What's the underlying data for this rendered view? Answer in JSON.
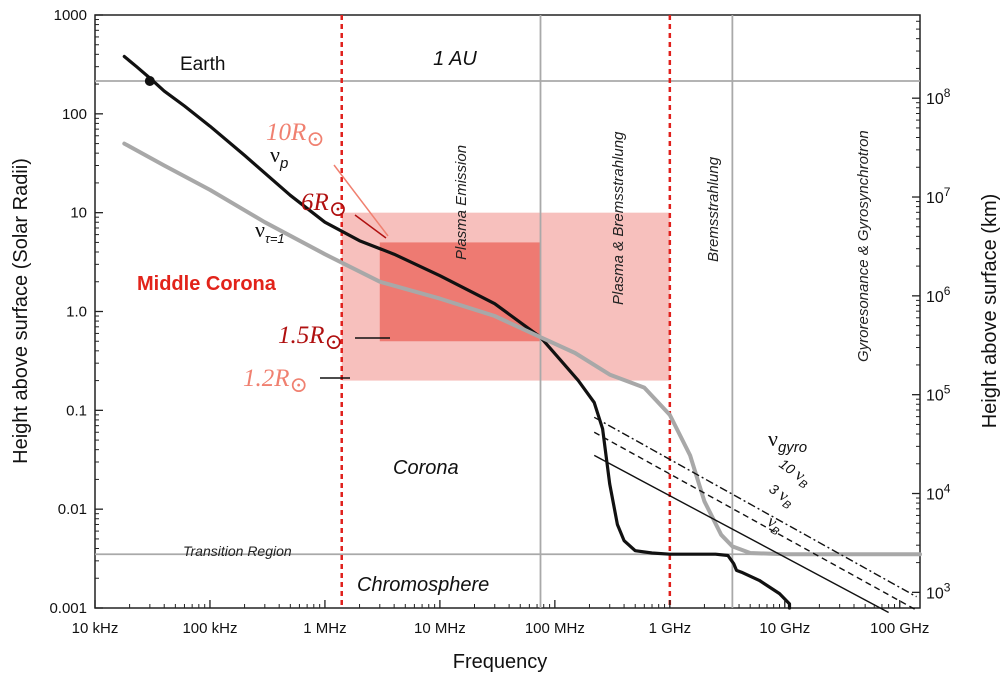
{
  "colors": {
    "dashed_line": "#e0201c",
    "outer_region": "#f7c0bd",
    "inner_region": "#ee7a72",
    "middle_corona_label": "#e2231a",
    "light_label": "#f08070",
    "dark_label": "#b01010",
    "curve_black": "#111111",
    "curve_gray": "#a8a8a8",
    "ref_line_gray": "#a9a9a9"
  },
  "chart_data": {
    "type": "line",
    "xlabel": "Frequency",
    "ylabel": "Height above surface (Solar Radii)",
    "y2label": "Height above surface (km)",
    "x_scale": "log",
    "y_scale": "log",
    "x_ticks": [
      {
        "value": 10000,
        "label": "10 kHz"
      },
      {
        "value": 100000,
        "label": "100 kHz"
      },
      {
        "value": 1000000,
        "label": "1 MHz"
      },
      {
        "value": 10000000,
        "label": "10 MHz"
      },
      {
        "value": 100000000,
        "label": "100 MHz"
      },
      {
        "value": 1000000000,
        "label": "1 GHz"
      },
      {
        "value": 10000000000,
        "label": "10 GHz"
      },
      {
        "value": 100000000000,
        "label": "100 GHz"
      }
    ],
    "y_ticks": [
      {
        "value": 0.001,
        "label": "0.001"
      },
      {
        "value": 0.01,
        "label": "0.01"
      },
      {
        "value": 0.1,
        "label": "0.1"
      },
      {
        "value": 1.0,
        "label": "1.0"
      },
      {
        "value": 10,
        "label": "10"
      },
      {
        "value": 100,
        "label": "100"
      },
      {
        "value": 1000,
        "label": "1000"
      }
    ],
    "y2_ticks": [
      {
        "value": 0.00144,
        "base": "10",
        "exp": "3"
      },
      {
        "value": 0.0144,
        "base": "10",
        "exp": "4"
      },
      {
        "value": 0.144,
        "base": "10",
        "exp": "5"
      },
      {
        "value": 1.44,
        "base": "10",
        "exp": "6"
      },
      {
        "value": 14.4,
        "base": "10",
        "exp": "7"
      },
      {
        "value": 144,
        "base": "10",
        "exp": "8"
      }
    ],
    "xlim": [
      10000,
      150000000000
    ],
    "ylim": [
      0.001,
      1000
    ],
    "grid": false,
    "regions": [
      {
        "name": "outer",
        "x": [
          1400000,
          1000000000
        ],
        "y": [
          0.2,
          10
        ]
      },
      {
        "name": "inner",
        "x": [
          3000000,
          75000000
        ],
        "y": [
          0.5,
          5
        ]
      }
    ],
    "vlines_dashed": [
      1400000,
      1000000000
    ],
    "vlines_gray": [
      75000000,
      3500000000
    ],
    "hlines_gray": [
      {
        "y": 215,
        "x_from": 10000,
        "x_to": 150000000000
      },
      {
        "y": 0.0035,
        "x_from": 10000,
        "x_to": 150000000000
      }
    ],
    "series": [
      {
        "name": "ν_p",
        "color": "#111111",
        "x": [
          18000,
          23000,
          30000,
          40000,
          60000,
          100000,
          200000,
          500000,
          1000000,
          2000000,
          4000000,
          10000000,
          30000000,
          75000000,
          110000000,
          160000000,
          220000000,
          260000000,
          300000000,
          350000000,
          400000000,
          500000000,
          700000000,
          1000000000,
          1500000000,
          2500000000,
          3200000000,
          3600000000,
          3800000000,
          4200000000,
          6000000000,
          9000000000,
          11000000000,
          11000000000
        ],
        "y": [
          380,
          300,
          230,
          170,
          120,
          75,
          38,
          15,
          8,
          5.2,
          3.8,
          2.3,
          1.2,
          0.55,
          0.33,
          0.2,
          0.12,
          0.065,
          0.018,
          0.007,
          0.0048,
          0.0038,
          0.0036,
          0.0035,
          0.0035,
          0.0035,
          0.0034,
          0.0028,
          0.0024,
          0.0023,
          0.0019,
          0.0014,
          0.0011,
          0.001
        ]
      },
      {
        "name": "ν_τ=1",
        "color": "#a8a8a8",
        "x": [
          18000,
          40000,
          100000,
          300000,
          1000000,
          3000000,
          10000000,
          30000000,
          75000000,
          150000000,
          300000000,
          600000000,
          1000000000,
          1500000000,
          2000000000,
          2800000000,
          3500000000,
          5000000000,
          10000000000,
          30000000000,
          100000000000,
          150000000000
        ],
        "y": [
          50,
          30,
          17,
          8,
          3.8,
          2,
          1.35,
          0.9,
          0.55,
          0.38,
          0.23,
          0.17,
          0.09,
          0.035,
          0.012,
          0.0055,
          0.0042,
          0.0036,
          0.0035,
          0.0035,
          0.0035,
          0.0035
        ]
      }
    ],
    "gyro_lines": [
      {
        "name": "10 ν_B",
        "style": "dashdot",
        "x": [
          220000000,
          140000000000
        ],
        "y": [
          0.085,
          0.0013
        ]
      },
      {
        "name": "3 ν_B",
        "style": "dashed",
        "x": [
          220000000,
          140000000000
        ],
        "y": [
          0.06,
          0.00095
        ]
      },
      {
        "name": "ν_B",
        "style": "solid",
        "x": [
          220000000,
          80000000000
        ],
        "y": [
          0.035,
          0.0009
        ]
      }
    ],
    "earth_point": {
      "x": 30000,
      "y": 215,
      "label": "Earth"
    }
  },
  "annotations": {
    "au": "1 AU",
    "earth": "Earth",
    "plasma_emission": "Plasma Emission",
    "plasma_brems": "Plasma & Bremsstrahlung",
    "brems": "Bremsstrahlung",
    "gyro": "Gyroresonance & Gyrosynchrotron",
    "middle_corona": "Middle Corona",
    "corona": "Corona",
    "transition": "Transition Region",
    "chromosphere": "Chromosphere",
    "nu": "ν",
    "nu_p_sub": "p",
    "nu_tau_sub": "τ=1",
    "nu_gyro_sub": "gyro",
    "nu_B_sub": "B",
    "ten": "10",
    "three": "3",
    "r_10": "10R",
    "r_6": "6R",
    "r_15": "1.5R",
    "r_12": "1.2R",
    "sun": "⊙"
  }
}
